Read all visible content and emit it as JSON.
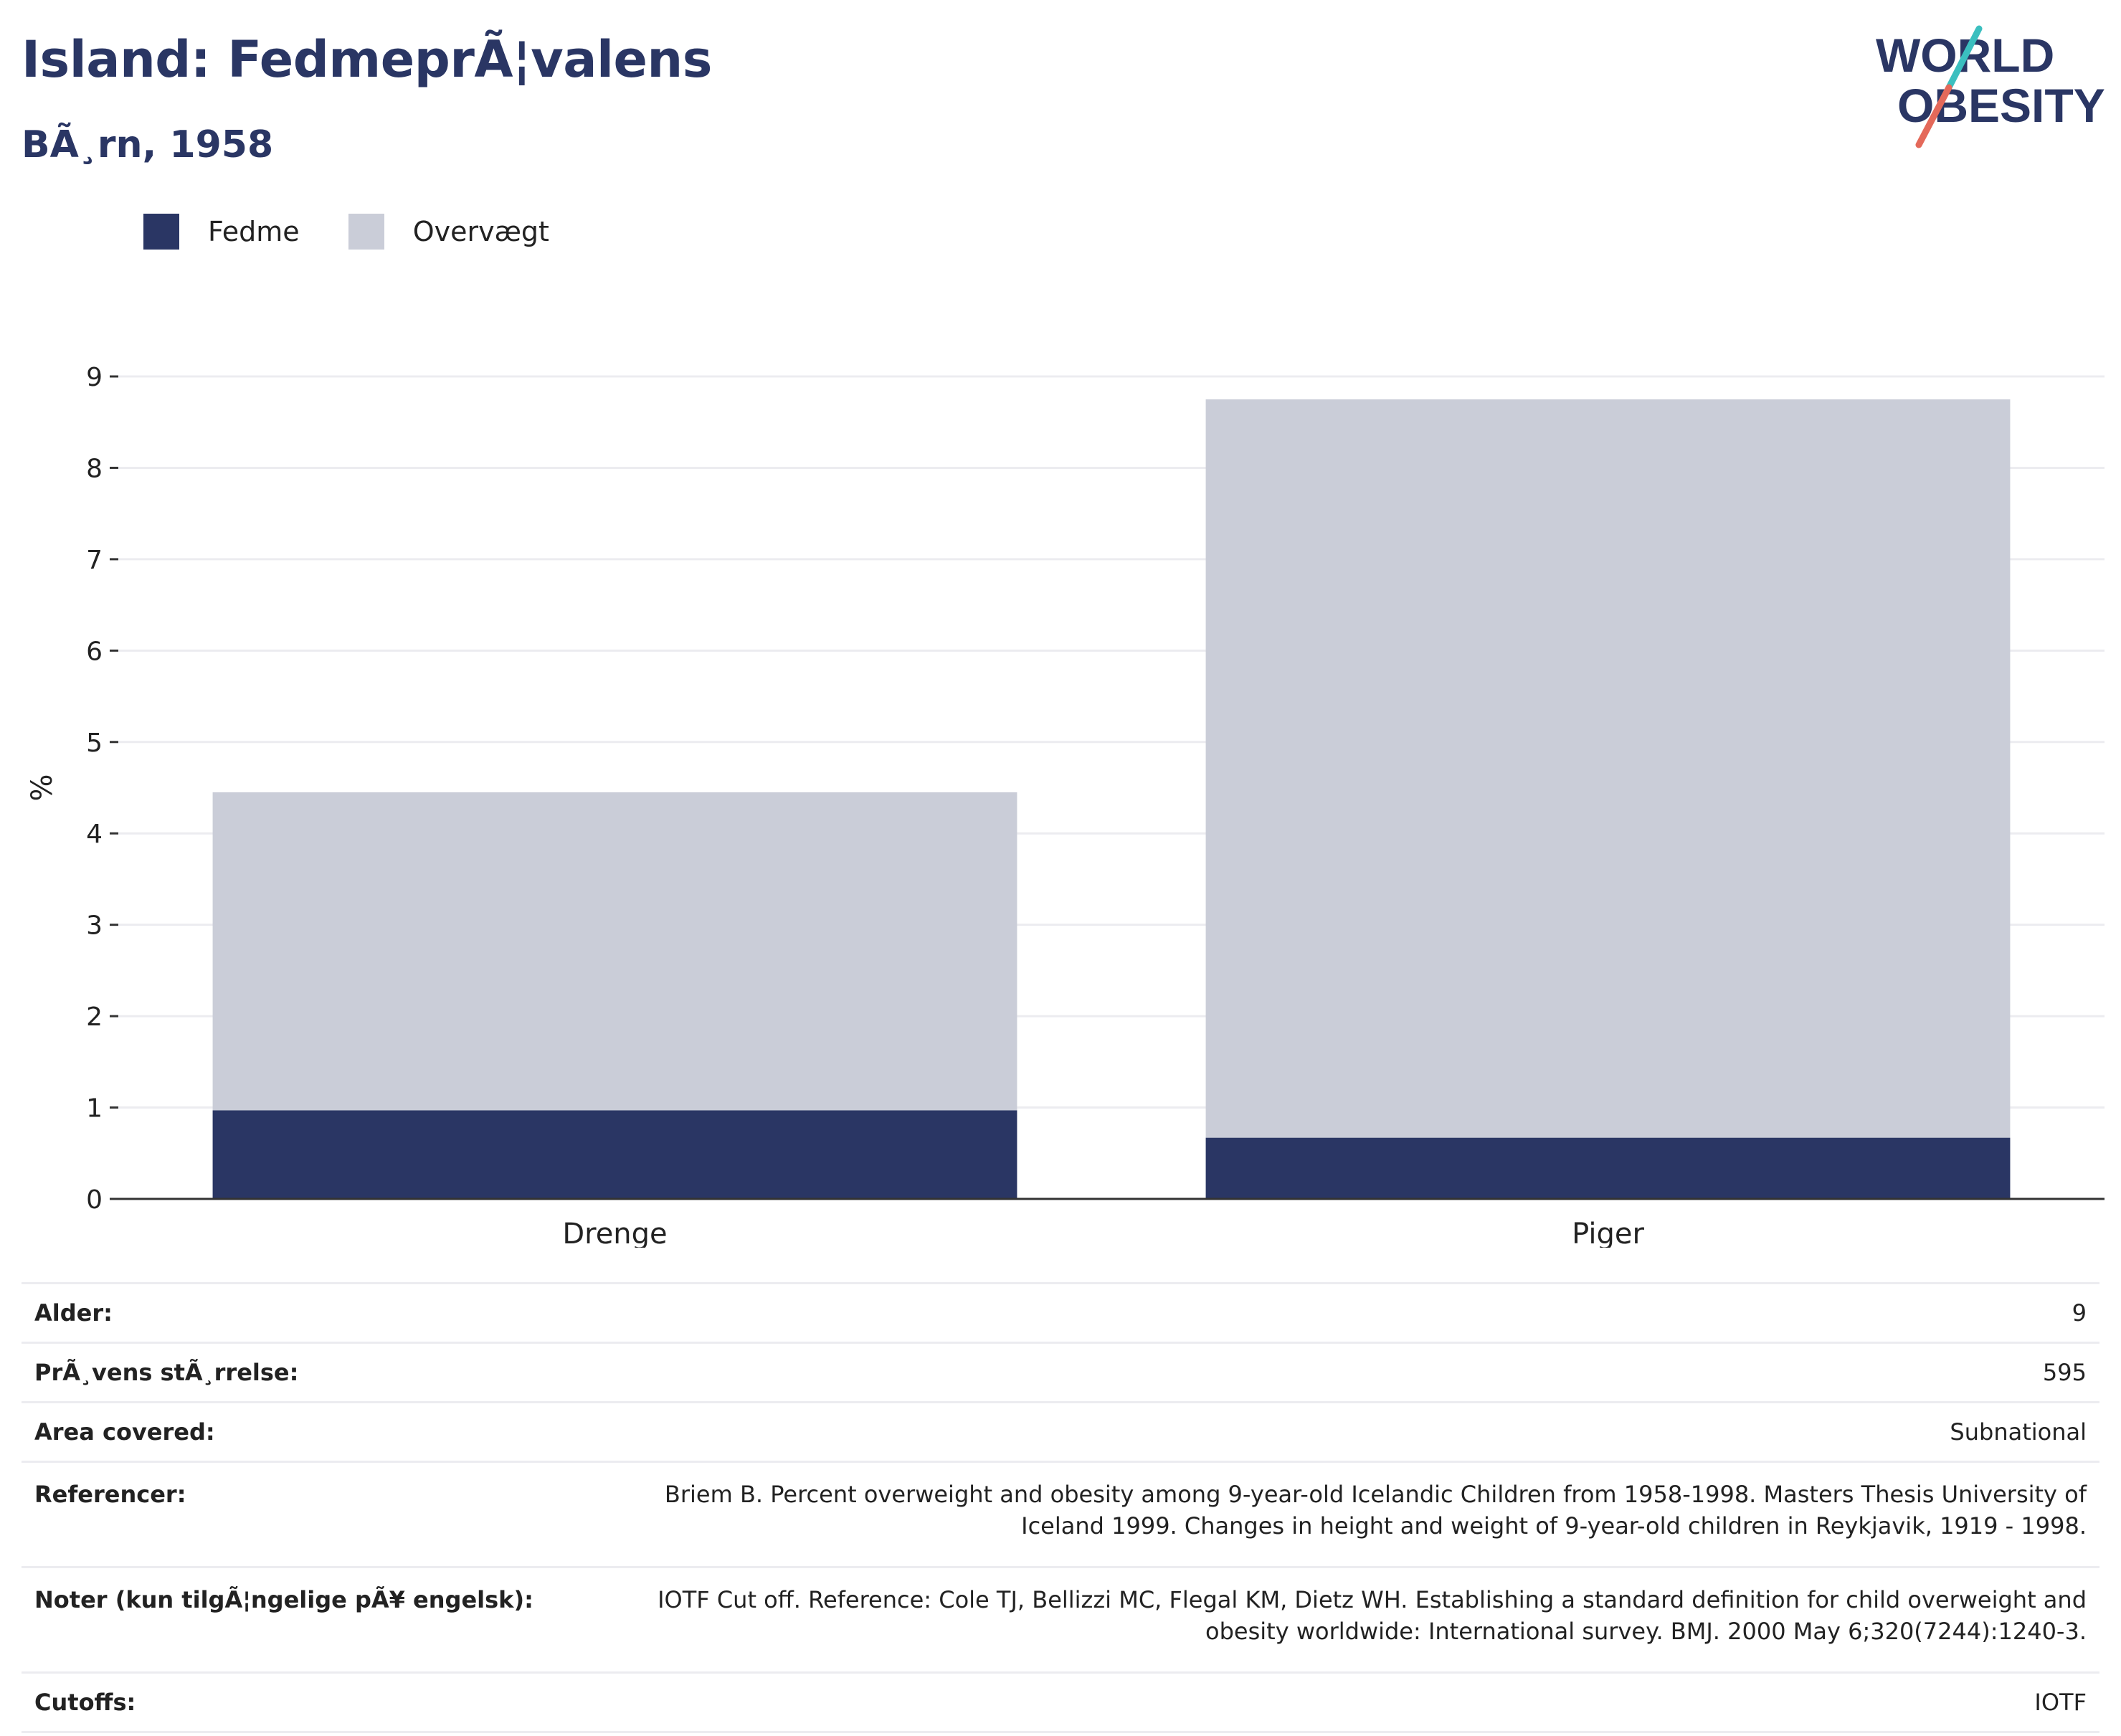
{
  "header": {
    "title": "Island: FedmeprÃ¦valens",
    "subtitle": "BÃ¸rn, 1958"
  },
  "logo": {
    "line1": "WORLD",
    "line2": "OBESITY",
    "icon": "world-obesity-logo",
    "colors": {
      "text": "#2a3664",
      "slash_top": "#3bbfbf",
      "slash_bottom": "#e4695a"
    }
  },
  "colors": {
    "fedme": "#2a3664",
    "overvaegt": "#cacdd8",
    "axis": "#333333",
    "grid": "#ececf0"
  },
  "chart_data": {
    "type": "bar",
    "stacked": true,
    "categories": [
      "Drenge",
      "Piger"
    ],
    "series": [
      {
        "name": "Fedme",
        "values": [
          0.97,
          0.67
        ],
        "color": "#2a3664"
      },
      {
        "name": "Overvægt",
        "values": [
          3.48,
          8.08
        ],
        "color": "#cacdd8"
      }
    ],
    "ylabel": "%",
    "xlabel": "",
    "ylim": [
      0,
      9
    ],
    "yticks": [
      "0",
      "1",
      "2",
      "3",
      "4",
      "5",
      "6",
      "7",
      "8",
      "9"
    ],
    "grid": true,
    "legend_position": "top-left"
  },
  "info": [
    {
      "label": "Alder:",
      "value": "9"
    },
    {
      "label": "PrÃ¸vens stÃ¸rrelse:",
      "value": "595"
    },
    {
      "label": "Area covered:",
      "value": "Subnational"
    },
    {
      "label": "Referencer:",
      "value": "Briem B. Percent overweight and obesity among 9-year-old Icelandic Children from 1958-1998. Masters Thesis University of Iceland 1999. Changes in height and weight of 9-year-old children in Reykjavik, 1919 - 1998."
    },
    {
      "label": "Noter (kun tilgÃ¦ngelige pÃ¥ engelsk):",
      "value": "IOTF Cut off. Reference: Cole TJ, Bellizzi MC, Flegal KM, Dietz WH. Establishing a standard definition for child overweight and obesity worldwide: International survey. BMJ. 2000 May 6;320(7244):1240-3."
    },
    {
      "label": "Cutoffs:",
      "value": "IOTF"
    }
  ]
}
